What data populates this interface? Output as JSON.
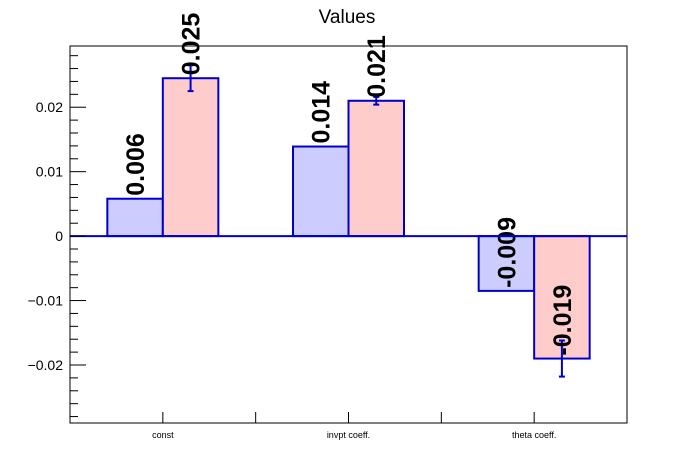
{
  "chart_data": {
    "type": "bar",
    "title": "Values",
    "xlabel": "",
    "ylabel": "",
    "categories": [
      "const",
      "invpt coeff.",
      "theta coeff."
    ],
    "series": [
      {
        "color": "#ccccff",
        "values": [
          0.0058,
          0.0139,
          -0.0085
        ],
        "labels": [
          "0.006",
          "0.014",
          "-0.009"
        ],
        "errors": [
          0,
          0,
          0
        ]
      },
      {
        "color": "#ffcccc",
        "values": [
          0.0245,
          0.021,
          -0.019
        ],
        "labels": [
          "0.025",
          "0.021",
          "-0.019"
        ],
        "errors": [
          0.002,
          0.0006,
          0.0028
        ]
      }
    ],
    "ylim": [
      -0.029,
      0.0295
    ],
    "yticks": [
      -0.02,
      -0.01,
      0,
      0.01,
      0.02
    ],
    "ytick_labels": [
      "−0.02",
      "−0.01",
      "0",
      "0.01",
      "0.02"
    ],
    "bar_edge_color": "#0000cc",
    "grid": false,
    "legend": "none"
  }
}
